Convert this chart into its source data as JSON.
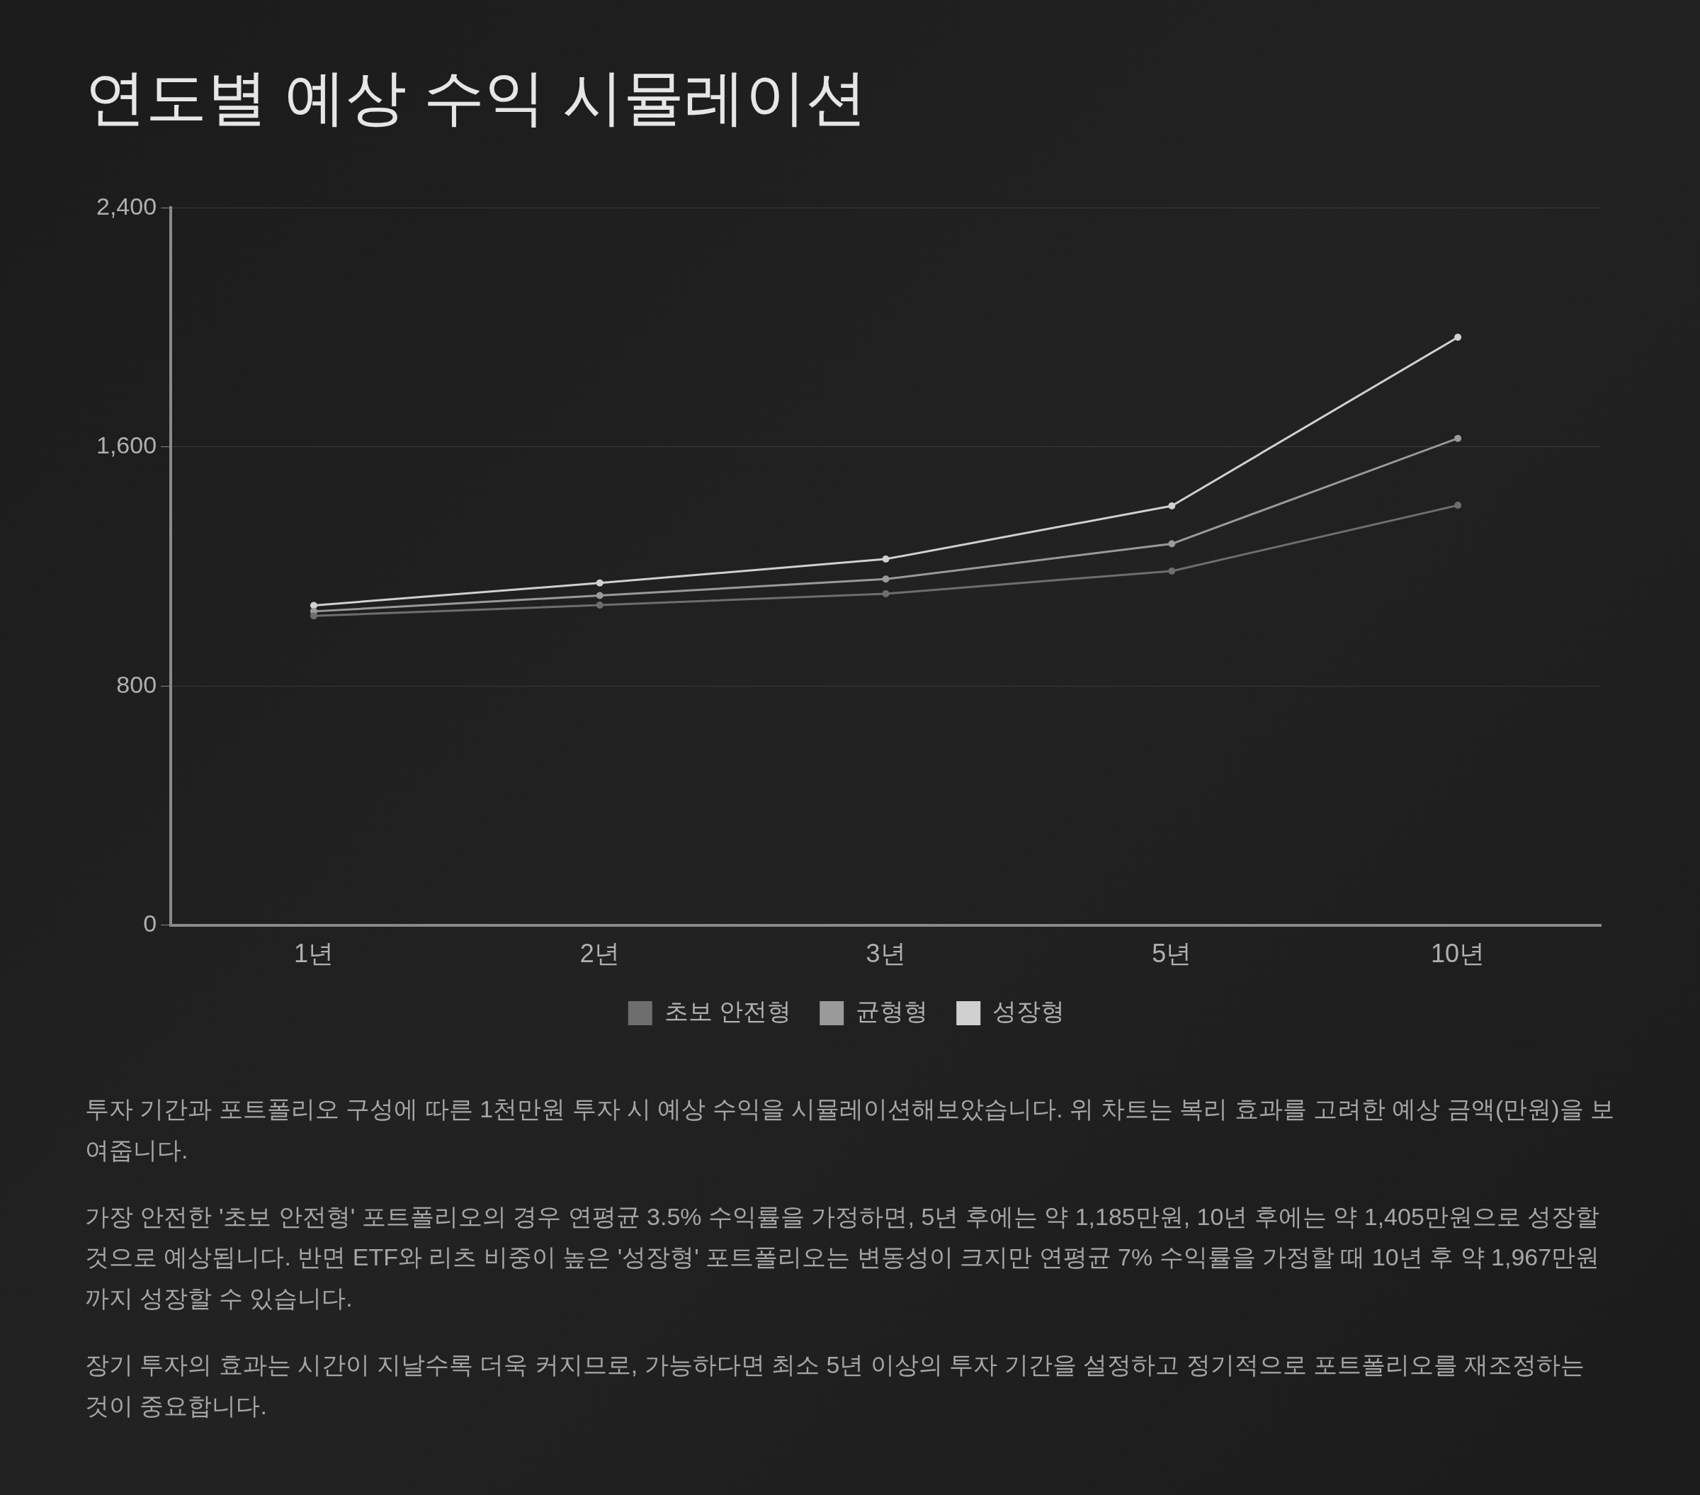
{
  "chart_data": {
    "type": "line",
    "title": "연도별 예상 수익 시뮬레이션",
    "categories": [
      "1년",
      "2년",
      "3년",
      "5년",
      "10년"
    ],
    "series": [
      {
        "name": "초보 안전형",
        "color": "#6e6e6e",
        "values": [
          1035,
          1071,
          1109,
          1185,
          1405
        ]
      },
      {
        "name": "균형형",
        "color": "#9a9a9a",
        "values": [
          1050,
          1103,
          1158,
          1276,
          1629
        ]
      },
      {
        "name": "성장형",
        "color": "#d0d0d0",
        "values": [
          1070,
          1145,
          1225,
          1403,
          1967
        ]
      }
    ],
    "ylim": [
      0,
      2400
    ],
    "yticks": [
      0,
      {
        "value": 800,
        "label": "800"
      },
      {
        "value": 1600,
        "label": "1,600"
      },
      {
        "value": 2400,
        "label": "2,400"
      }
    ],
    "grid": "y",
    "legend": "bottom",
    "marker": "circle",
    "line_style": "solid",
    "annotations": [
      "투자 기간과 포트폴리오 구성에 따른 1천만원 투자 시 예상 수익을 시뮬레이션해보았습니다. 위 차트는 복리 효과를 고려한 예상 금액(만원)을 보여줍니다.",
      "가장 안전한 '초보 안전형' 포트폴리오의 경우 연평균 3.5% 수익률을 가정하면, 5년 후에는 약 1,185만원, 10년 후에는 약 1,405만원으로 성장할 것으로 예상됩니다. 반면 ETF와 리츠 비중이 높은 '성장형' 포트폴리오는 변동성이 크지만 연평균 7% 수익률을 가정할 때 10년 후 약 1,967만원까지 성장할 수 있습니다.",
      "장기 투자의 효과는 시간이 지날수록 더욱 커지므로, 가능하다면 최소 5년 이상의 투자 기간을 설정하고 정기적으로 포트폴리오를 재조정하는 것이 중요합니다."
    ]
  }
}
